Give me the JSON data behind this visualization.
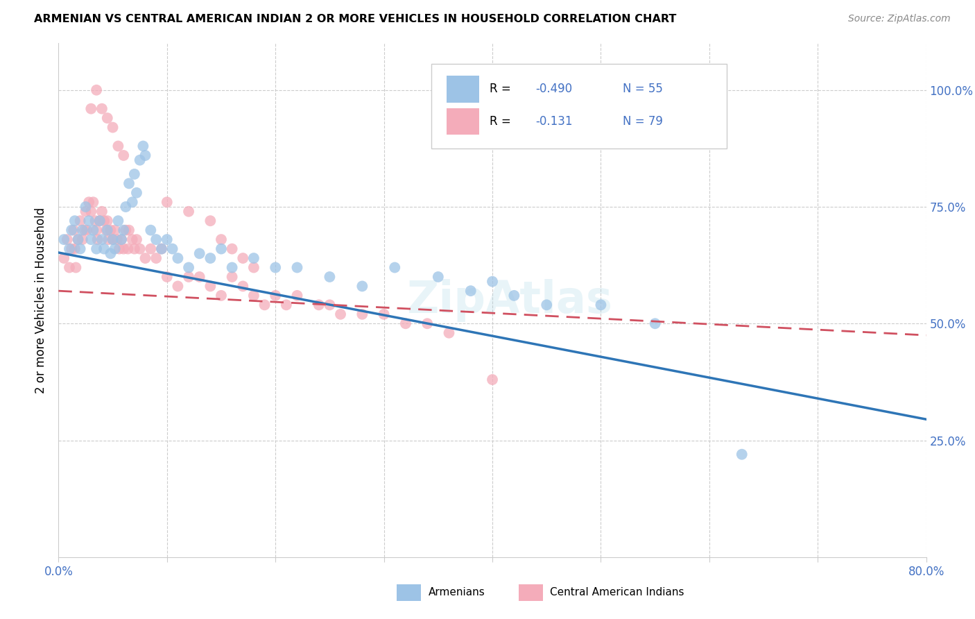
{
  "title": "ARMENIAN VS CENTRAL AMERICAN INDIAN 2 OR MORE VEHICLES IN HOUSEHOLD CORRELATION CHART",
  "source": "Source: ZipAtlas.com",
  "ylabel": "2 or more Vehicles in Household",
  "xlim": [
    0.0,
    0.8
  ],
  "ylim": [
    0.0,
    1.1
  ],
  "blue_text_color": "#4472C4",
  "armenians_color": "#9dc3e6",
  "central_color": "#f4acba",
  "trend_armenians_color": "#2e75b6",
  "trend_central_color": "#d05060",
  "armenians_x": [
    0.005,
    0.01,
    0.012,
    0.015,
    0.018,
    0.02,
    0.022,
    0.025,
    0.028,
    0.03,
    0.032,
    0.035,
    0.038,
    0.04,
    0.042,
    0.045,
    0.048,
    0.05,
    0.052,
    0.055,
    0.058,
    0.06,
    0.062,
    0.065,
    0.068,
    0.07,
    0.072,
    0.075,
    0.078,
    0.08,
    0.085,
    0.09,
    0.095,
    0.1,
    0.105,
    0.11,
    0.12,
    0.13,
    0.14,
    0.15,
    0.16,
    0.18,
    0.2,
    0.22,
    0.25,
    0.28,
    0.31,
    0.35,
    0.38,
    0.4,
    0.42,
    0.45,
    0.5,
    0.55,
    0.63
  ],
  "armenians_y": [
    0.68,
    0.66,
    0.7,
    0.72,
    0.68,
    0.66,
    0.7,
    0.75,
    0.72,
    0.68,
    0.7,
    0.66,
    0.72,
    0.68,
    0.66,
    0.7,
    0.65,
    0.68,
    0.66,
    0.72,
    0.68,
    0.7,
    0.75,
    0.8,
    0.76,
    0.82,
    0.78,
    0.85,
    0.88,
    0.86,
    0.7,
    0.68,
    0.66,
    0.68,
    0.66,
    0.64,
    0.62,
    0.65,
    0.64,
    0.66,
    0.62,
    0.64,
    0.62,
    0.62,
    0.6,
    0.58,
    0.62,
    0.6,
    0.57,
    0.59,
    0.56,
    0.54,
    0.54,
    0.5,
    0.22
  ],
  "central_x": [
    0.005,
    0.008,
    0.01,
    0.012,
    0.014,
    0.015,
    0.016,
    0.018,
    0.02,
    0.022,
    0.024,
    0.025,
    0.026,
    0.028,
    0.03,
    0.032,
    0.034,
    0.035,
    0.036,
    0.038,
    0.04,
    0.042,
    0.044,
    0.045,
    0.046,
    0.048,
    0.05,
    0.052,
    0.054,
    0.056,
    0.058,
    0.06,
    0.062,
    0.064,
    0.065,
    0.068,
    0.07,
    0.072,
    0.075,
    0.08,
    0.085,
    0.09,
    0.095,
    0.1,
    0.11,
    0.12,
    0.13,
    0.14,
    0.15,
    0.16,
    0.17,
    0.18,
    0.19,
    0.2,
    0.21,
    0.22,
    0.24,
    0.25,
    0.26,
    0.28,
    0.3,
    0.32,
    0.34,
    0.36,
    0.03,
    0.035,
    0.04,
    0.045,
    0.05,
    0.055,
    0.06,
    0.1,
    0.12,
    0.14,
    0.15,
    0.16,
    0.17,
    0.18,
    0.4
  ],
  "central_y": [
    0.64,
    0.68,
    0.62,
    0.66,
    0.7,
    0.66,
    0.62,
    0.68,
    0.72,
    0.68,
    0.7,
    0.74,
    0.7,
    0.76,
    0.74,
    0.76,
    0.72,
    0.7,
    0.68,
    0.72,
    0.74,
    0.72,
    0.7,
    0.72,
    0.68,
    0.7,
    0.68,
    0.7,
    0.68,
    0.66,
    0.68,
    0.66,
    0.7,
    0.66,
    0.7,
    0.68,
    0.66,
    0.68,
    0.66,
    0.64,
    0.66,
    0.64,
    0.66,
    0.6,
    0.58,
    0.6,
    0.6,
    0.58,
    0.56,
    0.6,
    0.58,
    0.56,
    0.54,
    0.56,
    0.54,
    0.56,
    0.54,
    0.54,
    0.52,
    0.52,
    0.52,
    0.5,
    0.5,
    0.48,
    0.96,
    1.0,
    0.96,
    0.94,
    0.92,
    0.88,
    0.86,
    0.76,
    0.74,
    0.72,
    0.68,
    0.66,
    0.64,
    0.62,
    0.38
  ]
}
